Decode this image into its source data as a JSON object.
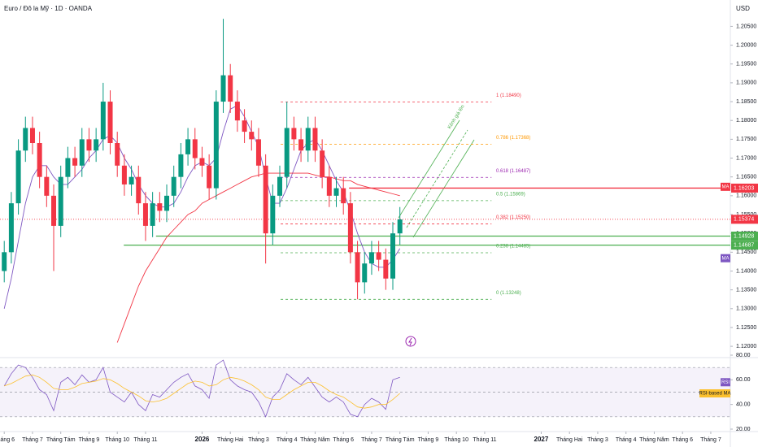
{
  "chart_data": [
    {
      "type": "candlestick",
      "title": "Euro / Đô la Mỹ · 1D · OANDA",
      "currency": "USD",
      "x": [
        0,
        0.25,
        0.5,
        0.75,
        1,
        1.25,
        1.5,
        1.75,
        2,
        2.25,
        2.5,
        2.75,
        3,
        3.25,
        3.5,
        3.75,
        4,
        4.25,
        4.5,
        4.75,
        5,
        5.25,
        5.5,
        5.75,
        6,
        6.25,
        6.5,
        6.75,
        7,
        7.25,
        7.5,
        7.75,
        8,
        8.25,
        8.5,
        8.75,
        9,
        9.25,
        9.5,
        9.75,
        10,
        10.25,
        10.5,
        10.75,
        11,
        11.25,
        11.5,
        11.75,
        12,
        12.25,
        12.5,
        12.75,
        13,
        13.25,
        13.5,
        13.75,
        14
      ],
      "open": [
        1.14,
        1.145,
        1.158,
        1.172,
        1.178,
        1.174,
        1.165,
        1.16,
        1.152,
        1.165,
        1.17,
        1.168,
        1.175,
        1.172,
        1.175,
        1.185,
        1.174,
        1.168,
        1.163,
        1.165,
        1.158,
        1.152,
        1.158,
        1.156,
        1.16,
        1.165,
        1.171,
        1.175,
        1.17,
        1.168,
        1.162,
        1.185,
        1.192,
        1.185,
        1.18,
        1.177,
        1.175,
        1.168,
        1.15,
        1.16,
        1.165,
        1.178,
        1.175,
        1.172,
        1.178,
        1.172,
        1.165,
        1.16,
        1.162,
        1.158,
        1.145,
        1.137,
        1.142,
        1.145,
        1.143,
        1.138,
        1.15
      ],
      "high": [
        1.148,
        1.161,
        1.175,
        1.181,
        1.181,
        1.177,
        1.168,
        1.163,
        1.168,
        1.173,
        1.173,
        1.178,
        1.178,
        1.178,
        1.19,
        1.188,
        1.177,
        1.171,
        1.168,
        1.168,
        1.161,
        1.161,
        1.161,
        1.163,
        1.168,
        1.174,
        1.178,
        1.178,
        1.173,
        1.171,
        1.188,
        1.207,
        1.195,
        1.188,
        1.183,
        1.18,
        1.178,
        1.171,
        1.163,
        1.168,
        1.185,
        1.181,
        1.178,
        1.181,
        1.181,
        1.175,
        1.168,
        1.165,
        1.165,
        1.161,
        1.148,
        1.145,
        1.148,
        1.148,
        1.146,
        1.153,
        1.157
      ],
      "low": [
        1.137,
        1.142,
        1.155,
        1.169,
        1.171,
        1.162,
        1.157,
        1.14,
        1.149,
        1.162,
        1.165,
        1.165,
        1.169,
        1.169,
        1.172,
        1.171,
        1.165,
        1.16,
        1.16,
        1.155,
        1.148,
        1.149,
        1.153,
        1.153,
        1.157,
        1.162,
        1.168,
        1.167,
        1.165,
        1.159,
        1.159,
        1.182,
        1.182,
        1.177,
        1.174,
        1.172,
        1.165,
        1.142,
        1.147,
        1.157,
        1.162,
        1.172,
        1.169,
        1.169,
        1.169,
        1.162,
        1.157,
        1.157,
        1.155,
        1.142,
        1.1325,
        1.134,
        1.139,
        1.14,
        1.135,
        1.135,
        1.147
      ],
      "close": [
        1.145,
        1.158,
        1.172,
        1.178,
        1.174,
        1.165,
        1.16,
        1.152,
        1.165,
        1.17,
        1.168,
        1.175,
        1.172,
        1.175,
        1.185,
        1.174,
        1.168,
        1.163,
        1.165,
        1.158,
        1.152,
        1.158,
        1.156,
        1.16,
        1.165,
        1.171,
        1.175,
        1.17,
        1.168,
        1.162,
        1.185,
        1.192,
        1.185,
        1.18,
        1.177,
        1.175,
        1.168,
        1.15,
        1.16,
        1.165,
        1.178,
        1.175,
        1.172,
        1.178,
        1.172,
        1.165,
        1.16,
        1.162,
        1.158,
        1.145,
        1.137,
        1.142,
        1.145,
        1.143,
        1.138,
        1.15,
        1.1537
      ],
      "up_color": "#089981",
      "down_color": "#f23645",
      "series": [
        {
          "name": "MA",
          "color": "#7e57c2",
          "values": [
            1.13,
            1.138,
            1.148,
            1.158,
            1.165,
            1.168,
            1.168,
            1.165,
            1.163,
            1.163,
            1.165,
            1.167,
            1.17,
            1.172,
            1.175,
            1.176,
            1.174,
            1.17,
            1.167,
            1.163,
            1.16,
            1.158,
            1.157,
            1.157,
            1.158,
            1.161,
            1.165,
            1.168,
            1.169,
            1.168,
            1.17,
            1.177,
            1.183,
            1.184,
            1.181,
            1.177,
            1.173,
            1.165,
            1.158,
            1.158,
            1.162,
            1.167,
            1.172,
            1.174,
            1.175,
            1.172,
            1.168,
            1.164,
            1.161,
            1.156,
            1.15,
            1.145,
            1.142,
            1.141,
            1.141,
            1.143,
            1.146
          ]
        },
        {
          "name": "MA",
          "color": "#f23645",
          "values": [
            null,
            null,
            null,
            null,
            null,
            null,
            null,
            null,
            null,
            null,
            null,
            null,
            null,
            null,
            null,
            null,
            1.121,
            1.126,
            1.131,
            1.136,
            1.14,
            1.143,
            1.146,
            1.149,
            1.151,
            1.153,
            1.155,
            1.156,
            1.158,
            1.159,
            1.16,
            1.161,
            1.162,
            1.163,
            1.164,
            1.165,
            1.1655,
            1.166,
            1.166,
            1.166,
            1.166,
            1.166,
            1.166,
            1.166,
            1.1655,
            1.165,
            1.165,
            1.1645,
            1.164,
            1.164,
            1.163,
            1.1625,
            1.162,
            1.1615,
            1.161,
            1.1605,
            1.16
          ]
        }
      ],
      "fib_x": [
        9.78,
        17.24
      ],
      "fib_levels": [
        {
          "label": "1 (1.18490)",
          "value": 1.1849,
          "color": "#f23645"
        },
        {
          "label": "0.786 (1.17368)",
          "value": 1.17368,
          "color": "#ff9800"
        },
        {
          "label": "0.618 (1.16487)",
          "value": 1.16487,
          "color": "#9c27b0"
        },
        {
          "label": "0.5 (1.15869)",
          "value": 1.15869,
          "color": "#4caf50"
        },
        {
          "label": "0.382 (1.15250)",
          "value": 1.1525,
          "color": "#f23645"
        },
        {
          "label": "0.236 (1.14485)",
          "value": 1.14485,
          "color": "#4caf50"
        },
        {
          "label": "0 (1.13248)",
          "value": 1.13248,
          "color": "#4caf50"
        }
      ],
      "hlines": [
        {
          "value": 1.16203,
          "color": "#f23645",
          "x_start": 12.2
        },
        {
          "value": 1.14928,
          "color": "#4caf50",
          "x_start": 5.37
        },
        {
          "value": 1.14687,
          "color": "#4caf50",
          "x_start": 4.23
        }
      ],
      "last_price": {
        "value": 1.15374,
        "color": "#f23645"
      },
      "annotation": "Kênh giá lên",
      "ylim": [
        1.117,
        1.212
      ],
      "yticks": [
        {
          "value": 1.12,
          "label": "1.12000"
        },
        {
          "value": 1.125,
          "label": "1.12500"
        },
        {
          "value": 1.13,
          "label": "1.13000"
        },
        {
          "value": 1.135,
          "label": "1.13500"
        },
        {
          "value": 1.14,
          "label": "1.14000"
        },
        {
          "value": 1.145,
          "label": "1.14500"
        },
        {
          "value": 1.15,
          "label": "1.15000"
        },
        {
          "value": 1.155,
          "label": "1.15500"
        },
        {
          "value": 1.16,
          "label": "1.16000"
        },
        {
          "value": 1.165,
          "label": "1.16500"
        },
        {
          "value": 1.17,
          "label": "1.17000"
        },
        {
          "value": 1.175,
          "label": "1.17500"
        },
        {
          "value": 1.18,
          "label": "1.18000"
        },
        {
          "value": 1.185,
          "label": "1.18500"
        },
        {
          "value": 1.19,
          "label": "1.19000"
        },
        {
          "value": 1.195,
          "label": "1.19500"
        },
        {
          "value": 1.2,
          "label": "1.20000"
        },
        {
          "value": 1.205,
          "label": "1.20500"
        }
      ],
      "xlim": [
        -0.15,
        25.75
      ],
      "xticks": [
        {
          "value": 0,
          "label": "Tháng 6"
        },
        {
          "value": 1,
          "label": "Tháng 7"
        },
        {
          "value": 2,
          "label": "Tháng Tám"
        },
        {
          "value": 3,
          "label": "Tháng 9"
        },
        {
          "value": 4,
          "label": "Tháng 10"
        },
        {
          "value": 5,
          "label": "Tháng 11"
        },
        {
          "value": 7,
          "label": "2026"
        },
        {
          "value": 8,
          "label": "Tháng Hai"
        },
        {
          "value": 9,
          "label": "Tháng 3"
        },
        {
          "value": 10,
          "label": "Tháng 4"
        },
        {
          "value": 11,
          "label": "Tháng Năm"
        },
        {
          "value": 12,
          "label": "Tháng 6"
        },
        {
          "value": 13,
          "label": "Tháng 7"
        },
        {
          "value": 14,
          "label": "Tháng Tám"
        },
        {
          "value": 15,
          "label": "Tháng 9"
        },
        {
          "value": 16,
          "label": "Tháng 10"
        },
        {
          "value": 17,
          "label": "Tháng 11"
        },
        {
          "value": 19,
          "label": "2027"
        },
        {
          "value": 20,
          "label": "Tháng Hai"
        },
        {
          "value": 21,
          "label": "Tháng 3"
        },
        {
          "value": 22,
          "label": "Tháng 4"
        },
        {
          "value": 23,
          "label": "Tháng Năm"
        },
        {
          "value": 24,
          "label": "Tháng 6"
        },
        {
          "value": 25,
          "label": "Tháng 7"
        }
      ]
    },
    {
      "type": "line",
      "series": [
        {
          "name": "RSI",
          "color": "#7e57c2",
          "values": [
            55,
            65,
            72,
            70,
            62,
            52,
            48,
            35,
            58,
            62,
            56,
            64,
            58,
            60,
            70,
            50,
            46,
            42,
            50,
            40,
            35,
            48,
            46,
            52,
            58,
            62,
            65,
            55,
            52,
            45,
            72,
            76,
            60,
            55,
            52,
            50,
            42,
            30,
            46,
            52,
            65,
            60,
            56,
            62,
            54,
            46,
            42,
            46,
            42,
            32,
            30,
            40,
            45,
            42,
            36,
            60,
            62
          ]
        },
        {
          "name": "RSI-based MA",
          "color": "#fbc02d",
          "values": [
            55,
            57,
            60,
            63,
            64,
            62,
            58,
            53,
            52,
            52,
            54,
            57,
            58,
            59,
            61,
            60,
            57,
            53,
            50,
            47,
            43,
            42,
            43,
            45,
            49,
            53,
            57,
            59,
            58,
            55,
            56,
            60,
            62,
            61,
            59,
            56,
            52,
            46,
            44,
            44,
            48,
            52,
            55,
            58,
            58,
            55,
            51,
            48,
            46,
            42,
            38,
            37,
            38,
            40,
            40,
            44,
            49
          ]
        }
      ],
      "bands": [
        70,
        50,
        30
      ],
      "ylim": [
        20,
        80
      ],
      "yticks": [
        {
          "value": 20,
          "label": "20.00"
        },
        {
          "value": 40,
          "label": "40.00"
        },
        {
          "value": 60,
          "label": "60.00"
        },
        {
          "value": 80,
          "label": "80.00"
        }
      ]
    }
  ]
}
